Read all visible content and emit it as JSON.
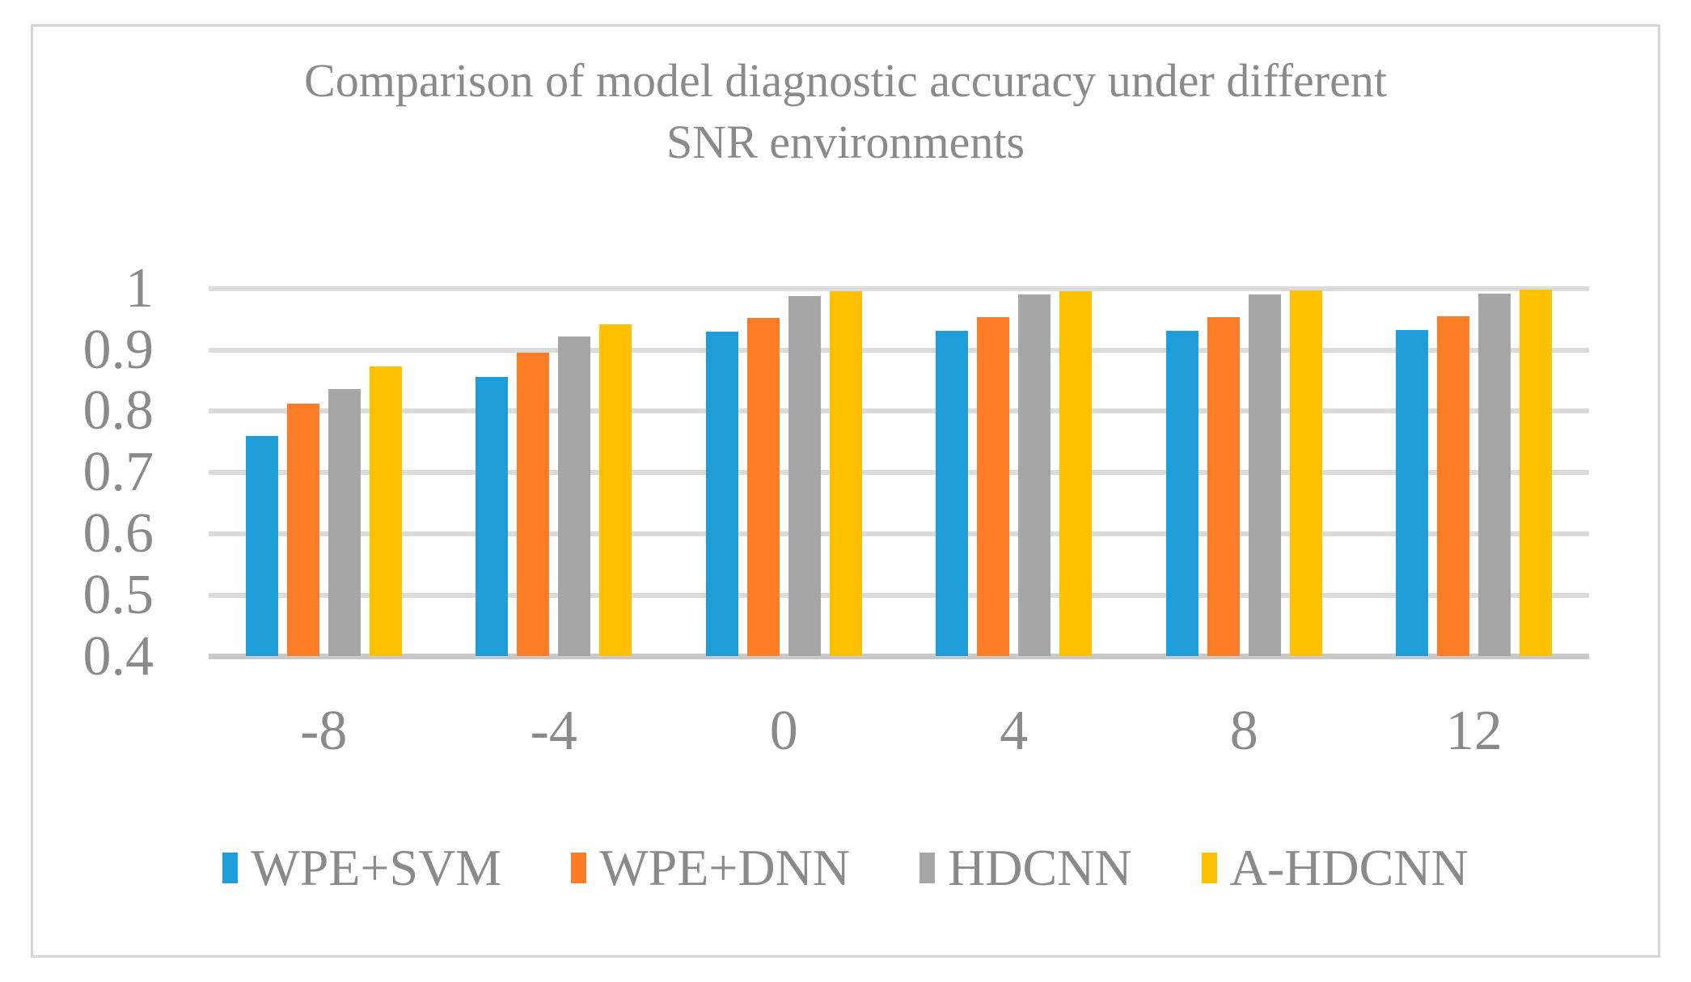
{
  "chart_data": {
    "type": "bar",
    "title": "Comparison of model diagnostic accuracy under different SNR environments",
    "title_lines": [
      "Comparison of model diagnostic accuracy under different",
      "SNR environments"
    ],
    "categories": [
      "-8",
      "-4",
      "0",
      "4",
      "8",
      "12"
    ],
    "series": [
      {
        "name": "WPE+SVM",
        "color": "#1F9DD9",
        "values": [
          0.76,
          0.856,
          0.93,
          0.931,
          0.931,
          0.932
        ]
      },
      {
        "name": "WPE+DNN",
        "color": "#FC7D26",
        "values": [
          0.812,
          0.896,
          0.952,
          0.953,
          0.954,
          0.955
        ]
      },
      {
        "name": "HDCNN",
        "color": "#A6A6A6",
        "values": [
          0.836,
          0.922,
          0.988,
          0.99,
          0.99,
          0.992
        ]
      },
      {
        "name": "A-HDCNN",
        "color": "#FFC000",
        "values": [
          0.873,
          0.942,
          0.995,
          0.996,
          0.997,
          0.998
        ]
      }
    ],
    "xlabel": "",
    "ylabel": "",
    "ylim": [
      0.4,
      1.0
    ],
    "yticks": [
      1,
      0.9,
      0.8,
      0.7,
      0.6,
      0.5,
      0.4
    ],
    "ytick_labels": [
      "1",
      "0.9",
      "0.8",
      "0.7",
      "0.6",
      "0.5",
      "0.4"
    ],
    "grid": true,
    "legend_position": "bottom"
  },
  "style": {
    "background": "#FFFFFF",
    "frame_border": "#D6D6D6",
    "gridline": "#DBDBDB",
    "axis_line": "#C9C9C9",
    "text": "#8A8A8A"
  }
}
